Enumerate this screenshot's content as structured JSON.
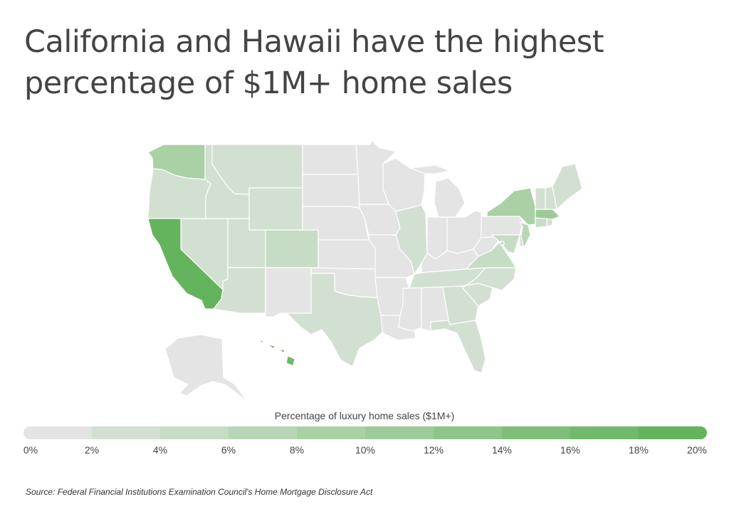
{
  "title": "California and Hawaii have the highest percentage of $1M+ home sales",
  "legend": {
    "title": "Percentage of luxury home sales ($1M+)",
    "ticks": [
      "0%",
      "2%",
      "4%",
      "6%",
      "8%",
      "10%",
      "12%",
      "14%",
      "16%",
      "18%",
      "20%"
    ],
    "colors": [
      "#e4e4e4",
      "#d2e0d1",
      "#c6dcc4",
      "#b8d6b5",
      "#aad0a6",
      "#9ccb97",
      "#8ec588",
      "#7fbe79",
      "#72b96b",
      "#63b45c"
    ]
  },
  "source": "Source:  Federal Financial Institutions Examination Council's Home Mortgage Disclosure Act",
  "chart_data": {
    "type": "choropleth",
    "metric": "Percentage of luxury home sales ($1M+)",
    "range": [
      0,
      20
    ],
    "unit": "%",
    "states": [
      {
        "state": "CA",
        "value": 19
      },
      {
        "state": "HI",
        "value": 17
      },
      {
        "state": "MA",
        "value": 11
      },
      {
        "state": "NY",
        "value": 8
      },
      {
        "state": "WA",
        "value": 8
      },
      {
        "state": "NJ",
        "value": 7
      },
      {
        "state": "CO",
        "value": 5
      },
      {
        "state": "CT",
        "value": 5
      },
      {
        "state": "VA",
        "value": 4
      },
      {
        "state": "MD",
        "value": 4
      },
      {
        "state": "DC",
        "value": 5
      },
      {
        "state": "IL",
        "value": 3
      },
      {
        "state": "OR",
        "value": 3
      },
      {
        "state": "UT",
        "value": 3
      },
      {
        "state": "NV",
        "value": 3
      },
      {
        "state": "ID",
        "value": 3
      },
      {
        "state": "MT",
        "value": 3
      },
      {
        "state": "WY",
        "value": 3
      },
      {
        "state": "AZ",
        "value": 3
      },
      {
        "state": "TX",
        "value": 3
      },
      {
        "state": "FL",
        "value": 3
      },
      {
        "state": "GA",
        "value": 3
      },
      {
        "state": "SC",
        "value": 3
      },
      {
        "state": "NC",
        "value": 3
      },
      {
        "state": "TN",
        "value": 2
      },
      {
        "state": "RI",
        "value": 3
      },
      {
        "state": "DE",
        "value": 3
      },
      {
        "state": "ME",
        "value": 2
      },
      {
        "state": "NH",
        "value": 2
      },
      {
        "state": "VT",
        "value": 2
      },
      {
        "state": "NM",
        "value": 1
      },
      {
        "state": "ND",
        "value": 1
      },
      {
        "state": "SD",
        "value": 1
      },
      {
        "state": "NE",
        "value": 1
      },
      {
        "state": "KS",
        "value": 1
      },
      {
        "state": "OK",
        "value": 1
      },
      {
        "state": "MN",
        "value": 1
      },
      {
        "state": "IA",
        "value": 1
      },
      {
        "state": "MO",
        "value": 1
      },
      {
        "state": "AR",
        "value": 1
      },
      {
        "state": "LA",
        "value": 1
      },
      {
        "state": "WI",
        "value": 1
      },
      {
        "state": "MI",
        "value": 1
      },
      {
        "state": "IN",
        "value": 1
      },
      {
        "state": "OH",
        "value": 1
      },
      {
        "state": "KY",
        "value": 1
      },
      {
        "state": "WV",
        "value": 1
      },
      {
        "state": "PA",
        "value": 1
      },
      {
        "state": "MS",
        "value": 1
      },
      {
        "state": "AL",
        "value": 1
      },
      {
        "state": "AK",
        "value": 1
      }
    ]
  }
}
